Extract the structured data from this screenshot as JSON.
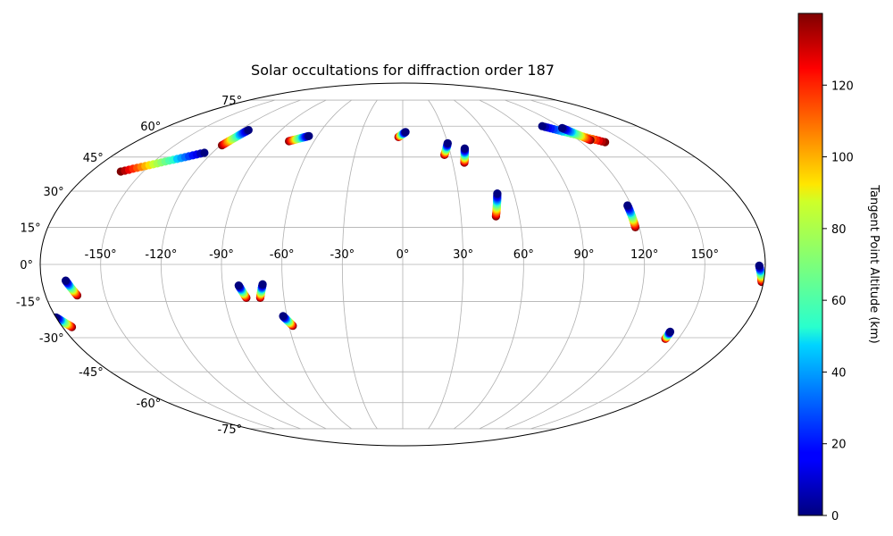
{
  "chart_data": {
    "type": "scatter",
    "projection": "mollweide",
    "title": "Solar occultations for diffraction order 187",
    "xlabel": "",
    "ylabel": "",
    "lon_ticks": [
      "-150°",
      "-120°",
      "-90°",
      "-60°",
      "-30°",
      "0°",
      "30°",
      "60°",
      "90°",
      "120°",
      "150°"
    ],
    "lon_tick_values": [
      -150,
      -120,
      -90,
      -60,
      -30,
      0,
      30,
      60,
      90,
      120,
      150
    ],
    "lat_ticks": [
      "75°",
      "60°",
      "45°",
      "30°",
      "15°",
      "0°",
      "-15°",
      "-30°",
      "-45°",
      "-60°",
      "-75°"
    ],
    "lat_tick_values": [
      75,
      60,
      45,
      30,
      15,
      0,
      -15,
      -30,
      -45,
      -60,
      -75
    ],
    "grid": true,
    "colormap": "jet",
    "colorbar": {
      "label": "Tangent Point Altitude (km)",
      "range": [
        0,
        140
      ],
      "ticks": [
        "0",
        "20",
        "40",
        "60",
        "80",
        "100",
        "120"
      ],
      "tick_values": [
        0,
        20,
        40,
        60,
        80,
        100,
        120
      ]
    },
    "tracks": [
      {
        "lon_low": -125,
        "lat_low": 47.0,
        "lon_high": -163,
        "lat_high": 38.5
      },
      {
        "lon_low": -114,
        "lat_low": 58.0,
        "lon_high": -119,
        "lat_high": 50.5
      },
      {
        "lon_low": -66,
        "lat_low": 55.0,
        "lon_high": -77,
        "lat_high": 52.5
      },
      {
        "lon_low": 2,
        "lat_low": 57.0,
        "lon_high": -3,
        "lat_high": 54.5
      },
      {
        "lon_low": 30,
        "lat_low": 51.5,
        "lon_high": 26,
        "lat_high": 46.0
      },
      {
        "lon_low": 40,
        "lat_low": 49.0,
        "lon_high": 37,
        "lat_high": 42.5
      },
      {
        "lon_low": 51,
        "lat_low": 29.0,
        "lon_high": 48,
        "lat_high": 19.5
      },
      {
        "lon_low": 107,
        "lat_low": 60.0,
        "lon_high": 136,
        "lat_high": 52.0
      },
      {
        "lon_low": 120,
        "lat_low": 59.0,
        "lon_high": 128,
        "lat_high": 53.0
      },
      {
        "lon_low": 118,
        "lat_low": 24.0,
        "lon_high": 118,
        "lat_high": 15.0
      },
      {
        "lon_low": 177,
        "lat_low": -0.5,
        "lon_high": 179,
        "lat_high": -7.0
      },
      {
        "lon_low": 143,
        "lat_low": -27.5,
        "lon_high": 143,
        "lat_high": -30.5
      },
      {
        "lon_low": -168,
        "lat_low": -6.5,
        "lon_high": -164,
        "lat_high": -12.5
      },
      {
        "lon_low": -180,
        "lat_low": -21.5,
        "lon_high": -175,
        "lat_high": -25.5
      },
      {
        "lon_low": -82,
        "lat_low": -8.5,
        "lon_high": -79,
        "lat_high": -13.5
      },
      {
        "lon_low": -70,
        "lat_low": -8.0,
        "lon_high": -72,
        "lat_high": -13.5
      },
      {
        "lon_low": -62,
        "lat_low": -21.0,
        "lon_high": -58,
        "lat_high": -25.0
      }
    ]
  }
}
